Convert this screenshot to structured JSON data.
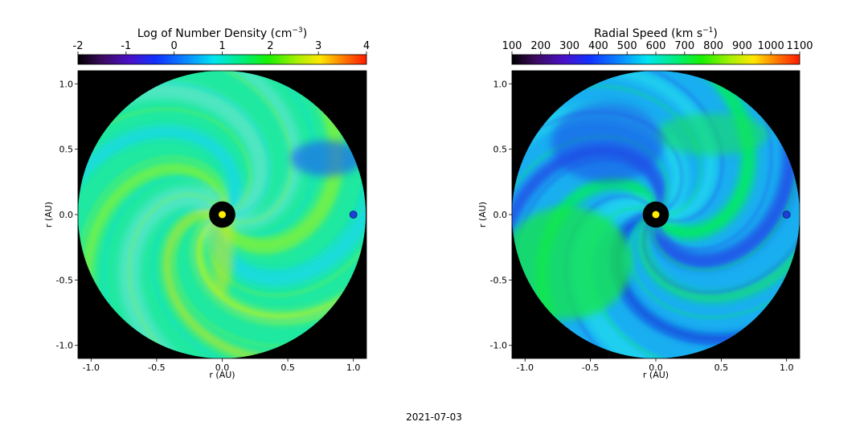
{
  "figure": {
    "date": "2021-07-03"
  },
  "chart_data": [
    {
      "type": "heatmap",
      "title": "Log of Number Density (cm",
      "title_sup": "−3",
      "title_close": ")",
      "colorbar": {
        "min": -2,
        "max": 4,
        "tick_values": [
          -2,
          -1,
          0,
          1,
          2,
          3,
          4
        ],
        "tick_labels": [
          "-2",
          "-1",
          "0",
          "1",
          "2",
          "3",
          "4"
        ],
        "colormap": "jet-like (black → purple → blue → cyan → green → yellow → red)"
      },
      "xlabel": "r (AU)",
      "ylabel": "r (AU)",
      "xlim": [
        -1.1,
        1.1
      ],
      "ylim": [
        -1.1,
        1.1
      ],
      "x_tick_values": [
        -1.0,
        -0.5,
        0.0,
        0.5,
        1.0
      ],
      "x_tick_labels": [
        "-1.0",
        "-0.5",
        "0.0",
        "0.5",
        "1.0"
      ],
      "y_tick_values": [
        1.0,
        0.5,
        0.0,
        -0.5,
        -1.0
      ],
      "y_tick_labels": [
        "1.0",
        "0.5",
        "0.0",
        "-0.5",
        "-1.0"
      ],
      "domain_radius_au": 1.1,
      "inner_boundary_radius_au": 0.1,
      "sun": {
        "x": 0.0,
        "y": 0.0,
        "color": "#ffee00"
      },
      "earth": {
        "x": 1.0,
        "y": 0.0,
        "color": "#1f3fd6"
      },
      "background_color": "#000000",
      "base_level": 1.0,
      "description_level_range": [
        0.5,
        2.2
      ]
    },
    {
      "type": "heatmap",
      "title": "Radial Speed (km s",
      "title_sup": "−1",
      "title_close": ")",
      "colorbar": {
        "min": 100,
        "max": 1100,
        "tick_values": [
          100,
          200,
          300,
          400,
          500,
          600,
          700,
          800,
          900,
          1000,
          1100
        ],
        "tick_labels": [
          "100",
          "200",
          "300",
          "400",
          "500",
          "600",
          "700",
          "800",
          "900",
          "1000",
          "1100"
        ],
        "colormap": "jet-like (black → purple → blue → cyan → green → yellow → red)"
      },
      "xlabel": "r (AU)",
      "ylabel": "r (AU)",
      "xlim": [
        -1.1,
        1.1
      ],
      "ylim": [
        -1.1,
        1.1
      ],
      "x_tick_values": [
        -1.0,
        -0.5,
        0.0,
        0.5,
        1.0
      ],
      "x_tick_labels": [
        "-1.0",
        "-0.5",
        "0.0",
        "0.5",
        "1.0"
      ],
      "y_tick_values": [
        1.0,
        0.5,
        0.0,
        -0.5,
        -1.0
      ],
      "y_tick_labels": [
        "1.0",
        "0.5",
        "0.0",
        "-0.5",
        "-1.0"
      ],
      "domain_radius_au": 1.1,
      "inner_boundary_radius_au": 0.1,
      "sun": {
        "x": 0.0,
        "y": 0.0,
        "color": "#ffee00"
      },
      "earth": {
        "x": 1.0,
        "y": 0.0,
        "color": "#1f3fd6"
      },
      "background_color": "#000000",
      "base_level": 520,
      "description_level_range": [
        380,
        720
      ]
    }
  ]
}
